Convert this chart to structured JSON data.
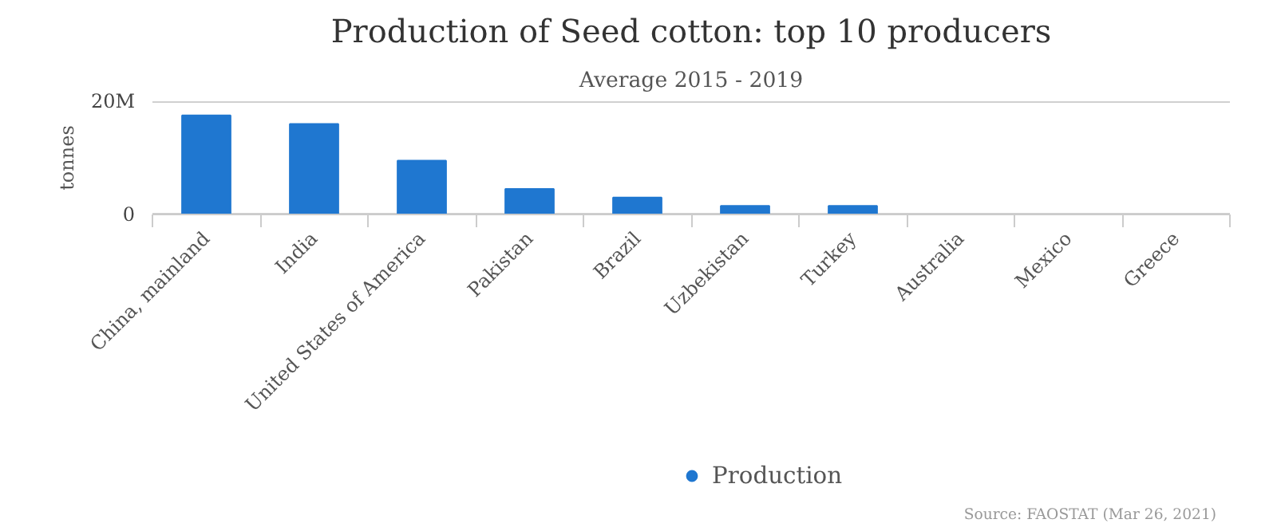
{
  "chart_data": {
    "type": "bar",
    "title": "Production of Seed cotton: top 10 producers",
    "subtitle": "Average 2015 - 2019",
    "ylabel": "tonnes",
    "categories": [
      "China, mainland",
      "India",
      "United States of America",
      "Pakistan",
      "Brazil",
      "Uzbekistan",
      "Turkey",
      "Australia",
      "Mexico",
      "Greece"
    ],
    "series": [
      {
        "name": "Production",
        "color": "#1f77d0",
        "values": [
          17.5,
          16,
          9.5,
          4.5,
          3,
          1.5,
          1.5,
          0,
          0,
          0
        ]
      }
    ],
    "ylim": [
      0,
      20
    ],
    "yticks": [
      0,
      {
        "value": 20,
        "label": "20M"
      }
    ],
    "grid": "y",
    "legend": "bottom",
    "annotations": [
      "Source: FAOSTAT (Mar 26, 2021)"
    ]
  }
}
